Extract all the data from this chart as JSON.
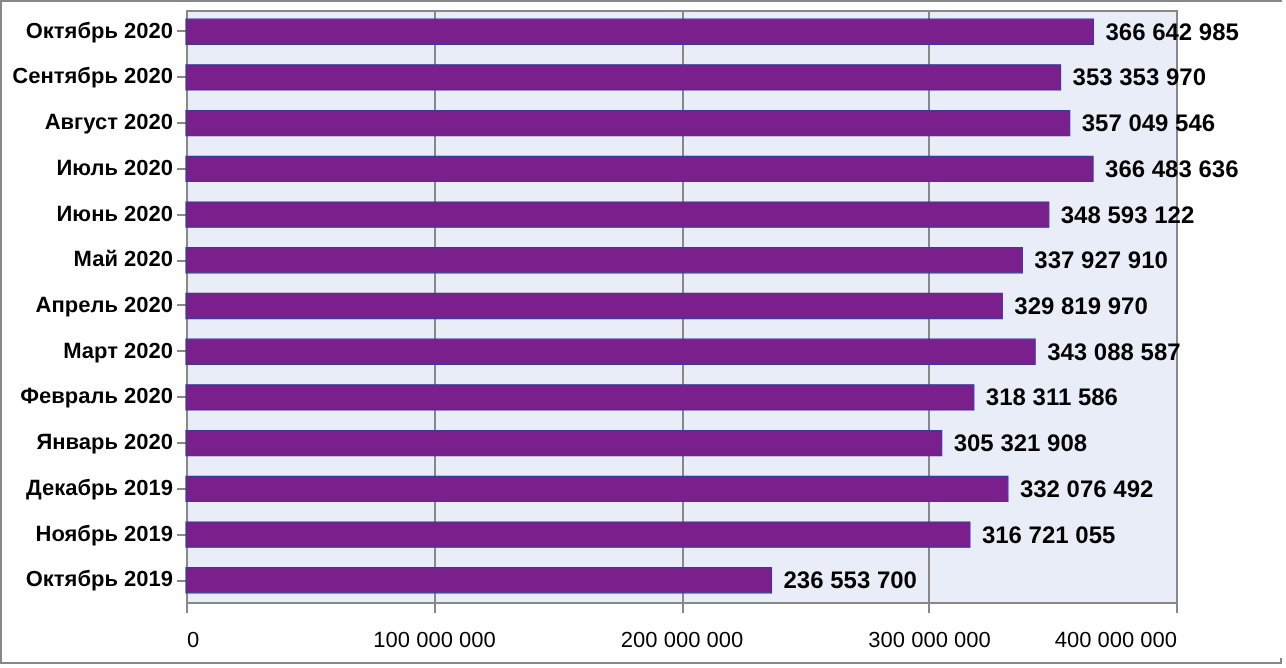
{
  "chart_data": {
    "type": "bar",
    "orientation": "horizontal",
    "categories": [
      "Октябрь 2020",
      "Сентябрь 2020",
      "Август 2020",
      "Июль 2020",
      "Июнь 2020",
      "Май 2020",
      "Апрель 2020",
      "Март 2020",
      "Февраль 2020",
      "Январь 2020",
      "Декабрь 2019",
      "Ноябрь 2019",
      "Октябрь 2019"
    ],
    "series": [
      {
        "color": "#7a1f8c",
        "values": [
          366642985,
          353353970,
          357049546,
          366483636,
          348593122,
          337927910,
          329819970,
          343088587,
          318311586,
          305321908,
          332076492,
          316721055,
          236553700
        ],
        "value_labels": [
          "366 642 985",
          "353 353 970",
          "357 049 546",
          "366 483 636",
          "348 593 122",
          "337 927 910",
          "329 819 970",
          "343 088 587",
          "318 311 586",
          "305 321 908",
          "332 076 492",
          "316 721 055",
          "236 553 700"
        ]
      }
    ],
    "xlim": [
      0,
      400000000
    ],
    "xticks": [
      {
        "value": 0,
        "label": "0"
      },
      {
        "value": 100000000,
        "label": "100 000 000"
      },
      {
        "value": 200000000,
        "label": "200 000 000"
      },
      {
        "value": 300000000,
        "label": "300 000 000"
      },
      {
        "value": 400000000,
        "label": "400 000 000"
      }
    ],
    "grid": "x"
  }
}
